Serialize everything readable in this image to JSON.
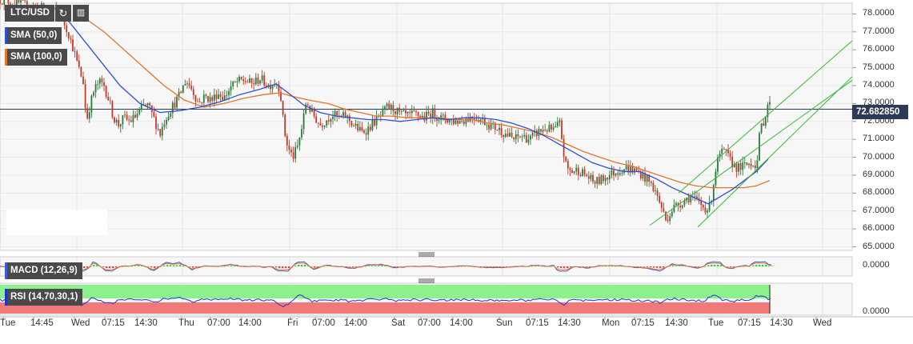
{
  "chart_data": {
    "type": "candlestick",
    "symbol": "LTC/USD",
    "last_price": "72.682850",
    "price_axis": {
      "ticks": [
        "78.0000",
        "77.0000",
        "76.0000",
        "75.0000",
        "74.0000",
        "73.0000",
        "72.0000",
        "71.0000",
        "70.0000",
        "69.0000",
        "68.0000",
        "67.0000",
        "66.0000",
        "65.0000"
      ],
      "ylim": [
        64.8,
        78.6
      ]
    },
    "macd_axis": {
      "ticks": [
        "0.0000"
      ]
    },
    "rsi_axis": {
      "ticks": [
        "0.0000"
      ]
    },
    "time_axis": [
      "Tue",
      "14:45",
      "Wed",
      "07:15",
      "14:30",
      "Thu",
      "07:00",
      "14:00",
      "Fri",
      "07:00",
      "14:00",
      "Sat",
      "07:00",
      "14:00",
      "Sun",
      "07:15",
      "14:30",
      "Mon",
      "07:15",
      "14:30",
      "Tue",
      "07:15",
      "14:30",
      "Wed"
    ],
    "time_axis_pos": [
      0,
      38,
      89,
      127,
      168,
      223,
      259,
      298,
      359,
      390,
      430,
      489,
      522,
      562,
      620,
      657,
      697,
      752,
      789,
      831,
      885,
      922,
      962,
      1016
    ],
    "price_path": [
      [
        0,
        78.8
      ],
      [
        30,
        78.5
      ],
      [
        60,
        78.3
      ],
      [
        75,
        78.0
      ],
      [
        85,
        77.0
      ],
      [
        92,
        76.0
      ],
      [
        98,
        75.0
      ],
      [
        104,
        74.2
      ],
      [
        108,
        72.0
      ],
      [
        113,
        73.0
      ],
      [
        118,
        73.8
      ],
      [
        124,
        74.2
      ],
      [
        130,
        74.0
      ],
      [
        136,
        73.2
      ],
      [
        142,
        72.2
      ],
      [
        148,
        71.8
      ],
      [
        155,
        72.2
      ],
      [
        162,
        72.0
      ],
      [
        170,
        72.3
      ],
      [
        178,
        72.8
      ],
      [
        185,
        72.9
      ],
      [
        192,
        72.2
      ],
      [
        200,
        71.3
      ],
      [
        206,
        72.1
      ],
      [
        212,
        72.6
      ],
      [
        218,
        73.0
      ],
      [
        225,
        73.5
      ],
      [
        232,
        74.3
      ],
      [
        240,
        73.8
      ],
      [
        248,
        73.0
      ],
      [
        256,
        73.4
      ],
      [
        265,
        73.2
      ],
      [
        272,
        73.6
      ],
      [
        280,
        73.3
      ],
      [
        288,
        73.9
      ],
      [
        296,
        74.2
      ],
      [
        305,
        74.3
      ],
      [
        315,
        74.1
      ],
      [
        325,
        74.4
      ],
      [
        335,
        74.0
      ],
      [
        345,
        74.2
      ],
      [
        350,
        73.8
      ],
      [
        355,
        71.5
      ],
      [
        360,
        70.5
      ],
      [
        366,
        70.0
      ],
      [
        372,
        70.6
      ],
      [
        378,
        71.8
      ],
      [
        383,
        73.2
      ],
      [
        388,
        72.6
      ],
      [
        394,
        72.2
      ],
      [
        400,
        71.8
      ],
      [
        408,
        72.1
      ],
      [
        415,
        72.4
      ],
      [
        424,
        72.2
      ],
      [
        432,
        72.3
      ],
      [
        442,
        71.8
      ],
      [
        452,
        71.4
      ],
      [
        460,
        71.6
      ],
      [
        468,
        72.0
      ],
      [
        476,
        72.3
      ],
      [
        484,
        72.8
      ],
      [
        492,
        72.7
      ],
      [
        500,
        72.4
      ],
      [
        510,
        72.3
      ],
      [
        520,
        72.4
      ],
      [
        530,
        72.2
      ],
      [
        540,
        72.5
      ],
      [
        550,
        72.2
      ],
      [
        560,
        72.1
      ],
      [
        570,
        72.0
      ],
      [
        580,
        72.1
      ],
      [
        592,
        72.3
      ],
      [
        602,
        72.1
      ],
      [
        612,
        71.8
      ],
      [
        622,
        71.6
      ],
      [
        632,
        71.3
      ],
      [
        642,
        71.0
      ],
      [
        652,
        71.2
      ],
      [
        662,
        71.0
      ],
      [
        672,
        71.4
      ],
      [
        682,
        71.6
      ],
      [
        692,
        71.5
      ],
      [
        700,
        71.9
      ],
      [
        704,
        70.3
      ],
      [
        708,
        69.4
      ],
      [
        714,
        69.2
      ],
      [
        722,
        69.3
      ],
      [
        732,
        69.0
      ],
      [
        742,
        68.6
      ],
      [
        750,
        68.7
      ],
      [
        760,
        69.0
      ],
      [
        770,
        69.2
      ],
      [
        780,
        69.4
      ],
      [
        790,
        69.3
      ],
      [
        800,
        69.1
      ],
      [
        810,
        68.7
      ],
      [
        818,
        68.2
      ],
      [
        826,
        67.3
      ],
      [
        832,
        66.5
      ],
      [
        836,
        66.8
      ],
      [
        842,
        67.2
      ],
      [
        852,
        67.5
      ],
      [
        862,
        67.8
      ],
      [
        872,
        67.5
      ],
      [
        880,
        67.2
      ],
      [
        886,
        67.1
      ],
      [
        890,
        68.0
      ],
      [
        895,
        69.5
      ],
      [
        900,
        70.2
      ],
      [
        906,
        70.3
      ],
      [
        914,
        69.7
      ],
      [
        922,
        69.4
      ],
      [
        930,
        69.5
      ],
      [
        938,
        69.7
      ],
      [
        946,
        69.6
      ],
      [
        950,
        71.6
      ],
      [
        956,
        72.2
      ],
      [
        960,
        73.1
      ],
      [
        964,
        72.7
      ]
    ],
    "sma50_path": [
      [
        75,
        78.2
      ],
      [
        100,
        76.8
      ],
      [
        125,
        75.4
      ],
      [
        150,
        74.0
      ],
      [
        175,
        73.0
      ],
      [
        200,
        72.5
      ],
      [
        225,
        72.6
      ],
      [
        250,
        72.8
      ],
      [
        275,
        73.1
      ],
      [
        300,
        73.5
      ],
      [
        325,
        73.8
      ],
      [
        345,
        74.1
      ],
      [
        360,
        73.6
      ],
      [
        380,
        72.9
      ],
      [
        400,
        72.5
      ],
      [
        420,
        72.3
      ],
      [
        440,
        72.2
      ],
      [
        460,
        72.1
      ],
      [
        480,
        72.1
      ],
      [
        500,
        72.0
      ],
      [
        520,
        72.1
      ],
      [
        540,
        72.2
      ],
      [
        560,
        72.1
      ],
      [
        580,
        72.2
      ],
      [
        600,
        72.2
      ],
      [
        620,
        72.1
      ],
      [
        640,
        71.9
      ],
      [
        660,
        71.6
      ],
      [
        680,
        71.2
      ],
      [
        700,
        70.7
      ],
      [
        720,
        70.2
      ],
      [
        740,
        69.7
      ],
      [
        760,
        69.4
      ],
      [
        780,
        69.2
      ],
      [
        800,
        69.2
      ],
      [
        820,
        68.8
      ],
      [
        840,
        68.3
      ],
      [
        860,
        67.9
      ],
      [
        875,
        67.6
      ],
      [
        885,
        67.4
      ],
      [
        900,
        67.8
      ],
      [
        915,
        68.2
      ],
      [
        930,
        68.7
      ],
      [
        945,
        69.2
      ],
      [
        960,
        69.9
      ]
    ],
    "sma100_path": [
      [
        105,
        77.8
      ],
      [
        130,
        77.0
      ],
      [
        155,
        76.0
      ],
      [
        180,
        75.0
      ],
      [
        205,
        74.0
      ],
      [
        230,
        73.2
      ],
      [
        255,
        72.8
      ],
      [
        280,
        73.0
      ],
      [
        305,
        73.3
      ],
      [
        330,
        73.5
      ],
      [
        350,
        73.6
      ],
      [
        365,
        73.4
      ],
      [
        385,
        73.2
      ],
      [
        410,
        73.0
      ],
      [
        430,
        72.7
      ],
      [
        450,
        72.5
      ],
      [
        470,
        72.3
      ],
      [
        490,
        72.3
      ],
      [
        510,
        72.2
      ],
      [
        530,
        72.2
      ],
      [
        550,
        72.2
      ],
      [
        570,
        72.1
      ],
      [
        590,
        72.1
      ],
      [
        610,
        71.9
      ],
      [
        630,
        71.8
      ],
      [
        650,
        71.6
      ],
      [
        670,
        71.4
      ],
      [
        690,
        71.1
      ],
      [
        710,
        70.7
      ],
      [
        730,
        70.3
      ],
      [
        750,
        70.0
      ],
      [
        770,
        69.7
      ],
      [
        790,
        69.5
      ],
      [
        810,
        69.2
      ],
      [
        830,
        68.9
      ],
      [
        850,
        68.6
      ],
      [
        870,
        68.4
      ],
      [
        890,
        68.3
      ],
      [
        910,
        68.3
      ],
      [
        930,
        68.3
      ],
      [
        945,
        68.4
      ],
      [
        962,
        68.7
      ]
    ],
    "channel_upper": [
      [
        848,
        68.0
      ],
      [
        1065,
        76.5
      ]
    ],
    "channel_lower": [
      [
        812,
        66.2
      ],
      [
        1065,
        74.3
      ]
    ],
    "channel_lower2": [
      [
        872,
        66.1
      ],
      [
        1065,
        74.5
      ]
    ],
    "series": [
      {
        "name": "SMA (50,0)",
        "color": "#2f4fd6"
      },
      {
        "name": "SMA (100,0)",
        "color": "#e0742a"
      }
    ]
  },
  "toolbar": {
    "symbol_label": "LTC/USD",
    "refresh_icon": "refresh-icon",
    "bars_icon": "bars-icon"
  },
  "legend": {
    "sma50": "SMA (50,0)",
    "sma100": "SMA (100,0)",
    "macd": "MACD (12,26,9)",
    "rsi": "RSI (14,70,30,1)"
  },
  "colors": {
    "candle_up": "#2a7a3a",
    "candle_down": "#c0392b",
    "sma50": "#2f4fd6",
    "sma100": "#e0742a",
    "channel": "#32b832",
    "price_line": "#2d3a55",
    "rsi_upper_band": "#8cf08c",
    "rsi_lower_band": "#f07a7a",
    "rsi_line": "#2233cc"
  }
}
